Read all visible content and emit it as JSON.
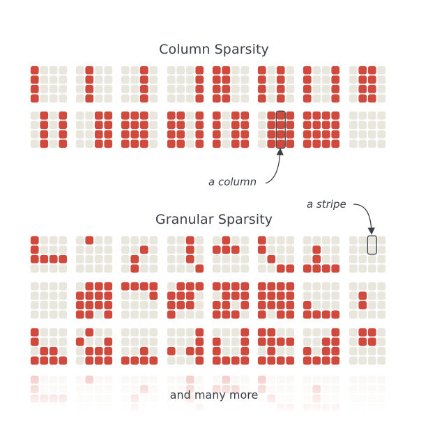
{
  "sections": {
    "column": {
      "title": "Column Sparsity",
      "patterns": [
        [
          "1000",
          "1000",
          "1000",
          "1000"
        ],
        [
          "0100",
          "0100",
          "0100",
          "0100"
        ],
        [
          "0010",
          "0010",
          "0010",
          "0010"
        ],
        [
          "0001",
          "0001",
          "0001",
          "0001"
        ],
        [
          "1100",
          "1100",
          "1100",
          "1100"
        ],
        [
          "1010",
          "1010",
          "1010",
          "1010"
        ],
        [
          "1001",
          "1001",
          "1001",
          "1001"
        ],
        [
          "0110",
          "0110",
          "0110",
          "0110"
        ],
        [
          "0101",
          "0101",
          "0101",
          "0101"
        ],
        [
          "0011",
          "0011",
          "0011",
          "0011"
        ],
        [
          "1110",
          "1110",
          "1110",
          "1110"
        ],
        [
          "1101",
          "1101",
          "1101",
          "1101"
        ],
        [
          "1011",
          "1011",
          "1011",
          "1011"
        ],
        [
          "0111",
          "0111",
          "0111",
          "0111"
        ],
        [
          "1111",
          "1111",
          "1111",
          "1111"
        ],
        [
          "0000",
          "0000",
          "0000",
          "0000"
        ]
      ],
      "annotation": "a column"
    },
    "granular": {
      "title": "Granular Sparsity",
      "patterns": [
        [
          "1000",
          "1000",
          "1111",
          "0000"
        ],
        [
          "0100",
          "0000",
          "0000",
          "0000"
        ],
        [
          "0000",
          "0010",
          "0100",
          "0100"
        ],
        [
          "0010",
          "0010",
          "0010",
          "0001"
        ],
        [
          "0100",
          "1110",
          "0000",
          "0000"
        ],
        [
          "1000",
          "1000",
          "0100",
          "0011"
        ],
        [
          "0000",
          "0100",
          "0100",
          "1111"
        ],
        [
          "0000",
          "0000",
          "0000",
          "0000"
        ],
        [
          "0000",
          "0000",
          "0000",
          "0000"
        ],
        [
          "0111",
          "1111",
          "1111",
          "1101"
        ],
        [
          "1111",
          "0001",
          "0000",
          "0000"
        ],
        [
          "0111",
          "1110",
          "1110",
          "1000"
        ],
        [
          "1111",
          "0111",
          "1101",
          "1110"
        ],
        [
          "1111",
          "1111",
          "1111",
          "1011"
        ],
        [
          "0000",
          "0000",
          "1000",
          "1111"
        ],
        [
          "0000",
          "0100",
          "0100",
          "0000"
        ],
        [
          "1000",
          "1000",
          "0110",
          "1111"
        ],
        [
          "0100",
          "1001",
          "0111",
          "0111"
        ],
        [
          "0000",
          "0000",
          "0010",
          "1111"
        ],
        [
          "0001",
          "0001",
          "1011",
          "0001"
        ],
        [
          "0001",
          "1001",
          "1001",
          "1111"
        ],
        [
          "1100",
          "1111",
          "0100",
          "1111"
        ],
        [
          "0001",
          "0011",
          "1011",
          "1111"
        ],
        [
          "0110",
          "0110",
          "0000",
          "0000"
        ]
      ],
      "annotation": "a stripe"
    }
  },
  "footer": {
    "more_label": "and many more"
  },
  "colors": {
    "active": "#cf4a3d",
    "inactive": "#e9e6dd",
    "highlight_stroke": "#3b3e47",
    "arrow": "#3b3e47"
  }
}
